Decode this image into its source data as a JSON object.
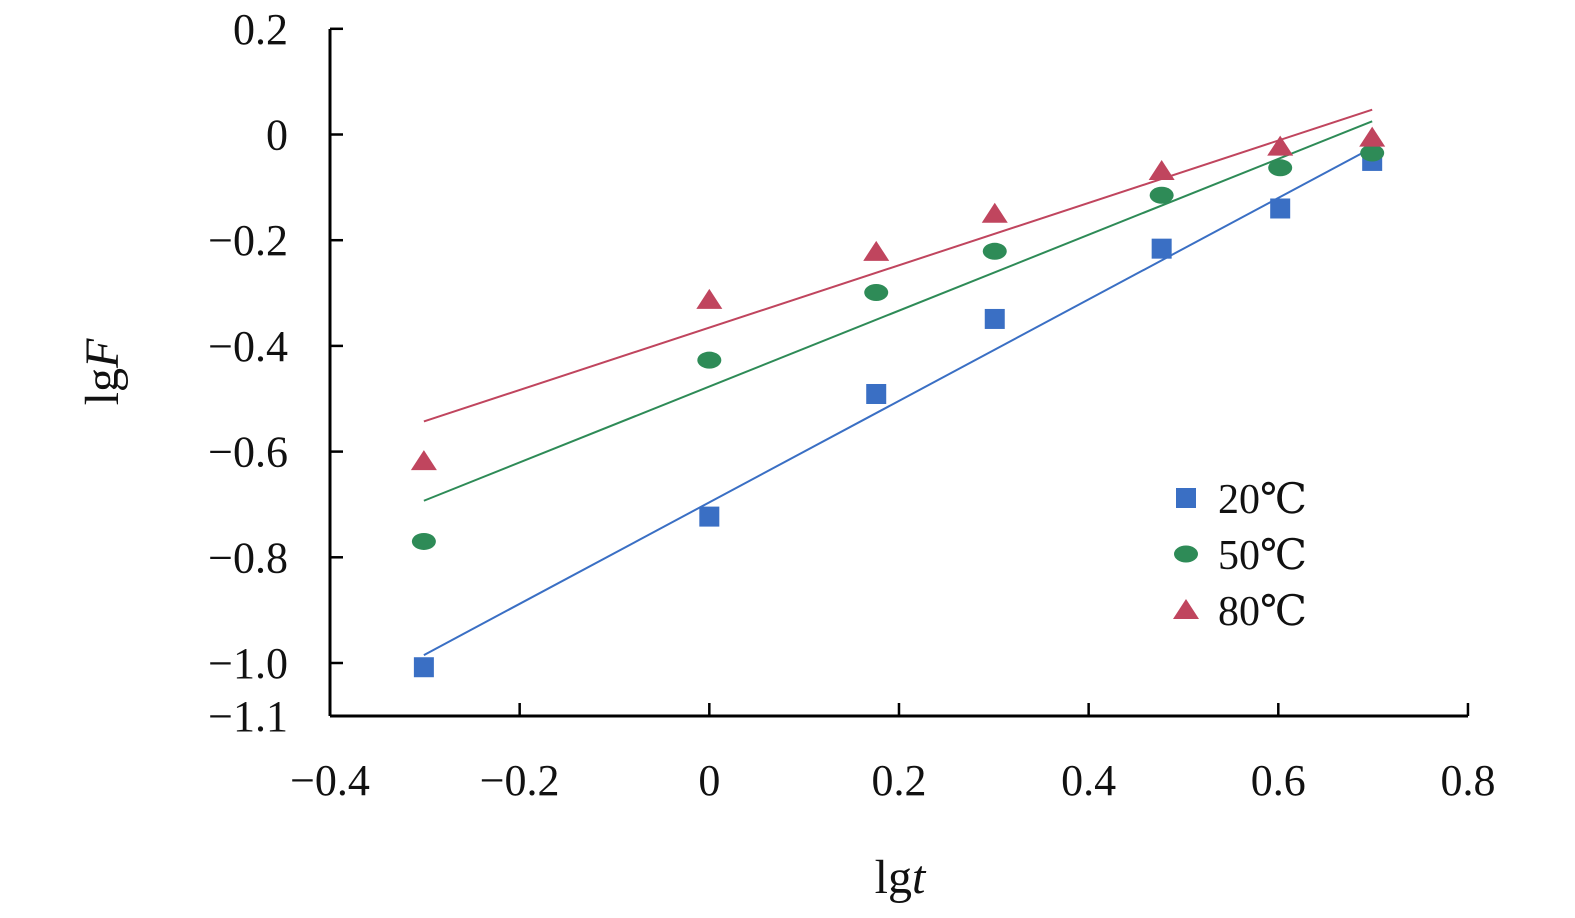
{
  "chart_data": {
    "type": "scatter",
    "title": "",
    "xlabel": {
      "prefix": "lg",
      "var": "t"
    },
    "ylabel": {
      "prefix": "lg",
      "var": "F"
    },
    "xlim": [
      -0.4,
      0.8
    ],
    "ylim": [
      -1.1,
      0.2
    ],
    "xticks": [
      -0.4,
      -0.2,
      0,
      0.2,
      0.4,
      0.6,
      0.8
    ],
    "xtick_labels": [
      "−0.4",
      "−0.2",
      "0",
      "0.2",
      "0.4",
      "0.6",
      "0.8"
    ],
    "yticks": [
      0.2,
      0,
      -0.2,
      -0.4,
      -0.6,
      -0.8,
      -1.0,
      -1.1
    ],
    "ytick_labels": [
      "0.2",
      "0",
      "−0.2",
      "−0.4",
      "−0.6",
      "−0.8",
      "−1.0",
      "−1.1"
    ],
    "grid": false,
    "legend_position": "right",
    "x": [
      -0.301,
      0,
      0.176,
      0.301,
      0.477,
      0.602,
      0.699
    ],
    "series": [
      {
        "name": "20℃",
        "marker": "square",
        "color": "#3a6fc4",
        "y": [
          -1.008,
          -0.723,
          -0.491,
          -0.349,
          -0.216,
          -0.14,
          -0.05
        ],
        "fit": {
          "x": [
            -0.301,
            0.699
          ],
          "y": [
            -0.985,
            -0.025
          ]
        }
      },
      {
        "name": "50℃",
        "marker": "ellipse",
        "color": "#2e8b57",
        "y": [
          -0.77,
          -0.427,
          -0.299,
          -0.221,
          -0.115,
          -0.063,
          -0.035
        ],
        "fit": {
          "x": [
            -0.301,
            0.699
          ],
          "y": [
            -0.693,
            0.025
          ]
        }
      },
      {
        "name": "80℃",
        "marker": "triangle",
        "color": "#c0455e",
        "y": [
          -0.618,
          -0.313,
          -0.222,
          -0.15,
          -0.069,
          -0.023,
          -0.006
        ],
        "fit": {
          "x": [
            -0.301,
            0.699
          ],
          "y": [
            -0.543,
            0.047
          ]
        }
      }
    ]
  }
}
